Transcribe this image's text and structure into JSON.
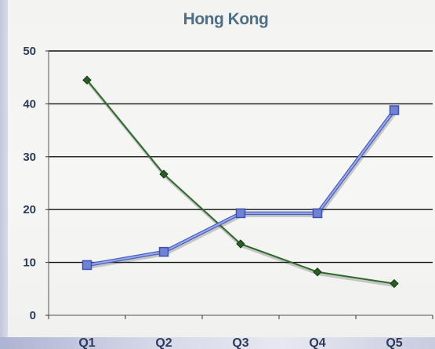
{
  "chart_data": {
    "type": "line",
    "title": "Hong Kong",
    "xlabel": "",
    "ylabel": "",
    "categories": [
      "Q1",
      "Q2",
      "Q3",
      "Q4",
      "Q5"
    ],
    "ylim": [
      0,
      50
    ],
    "yticks": [
      0,
      10,
      20,
      30,
      40,
      50
    ],
    "grid": true,
    "legend": "none",
    "series": [
      {
        "values": [
          44.5,
          26.7,
          13.5,
          8.2,
          6.0
        ],
        "color": "#2e6b2a",
        "marker": "diamond"
      },
      {
        "values": [
          9.5,
          12.0,
          19.3,
          19.3,
          38.8
        ],
        "color": "#6f82d3",
        "marker": "square"
      }
    ]
  }
}
